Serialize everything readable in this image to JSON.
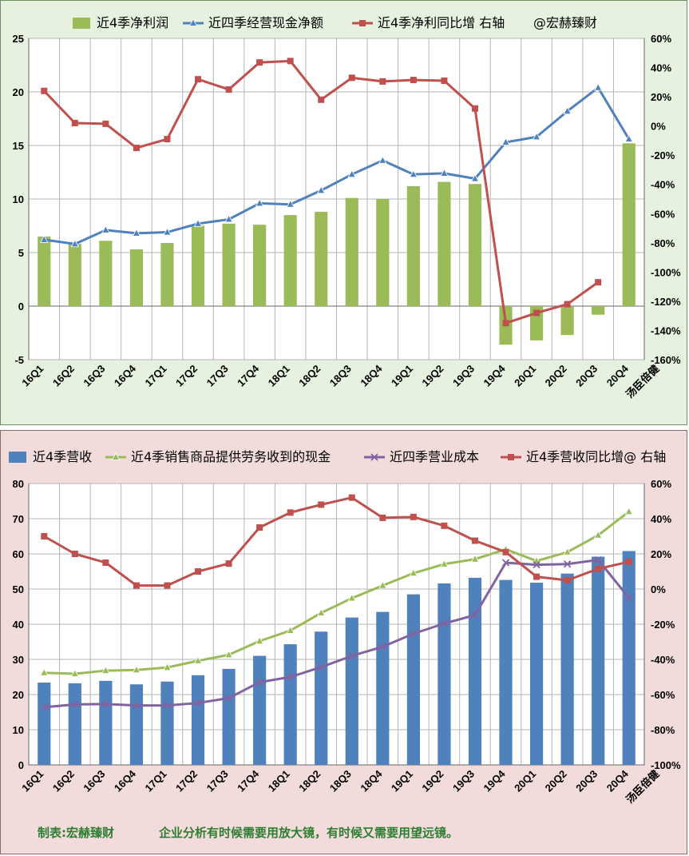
{
  "chart_data": [
    {
      "type": "bar",
      "categories": [
        "16Q1",
        "16Q2",
        "16Q3",
        "16Q4",
        "17Q1",
        "17Q2",
        "17Q3",
        "17Q4",
        "18Q1",
        "18Q2",
        "18Q3",
        "18Q4",
        "19Q1",
        "19Q2",
        "19Q3",
        "19Q4",
        "20Q1",
        "20Q2",
        "20Q3",
        "20Q4"
      ],
      "watermark": "汤臣倍健",
      "series": [
        {
          "name": "近4季净利润",
          "kind": "bar",
          "axis": "left",
          "color": "#9bbb59",
          "values": [
            6.5,
            5.8,
            6.1,
            5.3,
            5.9,
            7.5,
            7.7,
            7.6,
            8.5,
            8.8,
            10.1,
            10.0,
            11.2,
            11.6,
            11.4,
            -3.6,
            -3.2,
            -2.7,
            -0.8,
            15.2
          ]
        },
        {
          "name": "近四季经营现金净额",
          "kind": "line",
          "marker": "triangle",
          "axis": "left",
          "color": "#4f81bd",
          "values": [
            6.2,
            5.8,
            7.1,
            6.8,
            6.9,
            7.7,
            8.1,
            9.6,
            9.5,
            10.8,
            12.3,
            13.6,
            12.3,
            12.4,
            11.9,
            15.3,
            15.8,
            18.2,
            20.4,
            15.6
          ]
        },
        {
          "name": "近4季净利同比增 右轴",
          "kind": "line",
          "marker": "square",
          "axis": "right",
          "color": "#c0504d",
          "values": [
            24,
            2,
            1.5,
            -15,
            -9,
            32,
            25,
            43.5,
            44.5,
            18,
            33,
            30.5,
            31.5,
            31,
            12,
            -135,
            -128,
            -122,
            -107,
            null
          ]
        }
      ],
      "legend_suffix": "@宏赫臻财",
      "ylim": [
        -5,
        25
      ],
      "yticks": [
        "-5",
        "0",
        "5",
        "10",
        "15",
        "20",
        "25"
      ],
      "y2lim": [
        -160,
        60
      ],
      "y2ticks": [
        "-160%",
        "-140%",
        "-120%",
        "-100%",
        "-80%",
        "-60%",
        "-40%",
        "-20%",
        "0%",
        "20%",
        "40%",
        "60%"
      ],
      "grid": true,
      "legend_position": "top"
    },
    {
      "type": "bar",
      "categories": [
        "16Q1",
        "16Q2",
        "16Q3",
        "16Q4",
        "17Q1",
        "17Q2",
        "17Q3",
        "17Q4",
        "18Q1",
        "18Q2",
        "18Q3",
        "18Q4",
        "19Q1",
        "19Q2",
        "19Q3",
        "19Q4",
        "20Q1",
        "20Q2",
        "20Q3",
        "20Q4"
      ],
      "watermark": "汤臣倍健",
      "series": [
        {
          "name": "近4季营收",
          "kind": "bar",
          "axis": "left",
          "color": "#4f81bd",
          "values": [
            23.4,
            23.2,
            23.9,
            22.9,
            23.7,
            25.5,
            27.3,
            31.0,
            34.3,
            37.9,
            41.9,
            43.5,
            48.5,
            51.6,
            53.2,
            52.6,
            51.8,
            54.4,
            59.2,
            60.8
          ]
        },
        {
          "name": "近4季销售商品提供劳务收到的现金",
          "kind": "line",
          "marker": "triangle",
          "axis": "left",
          "color": "#9bbb59",
          "values": [
            26.2,
            25.9,
            26.8,
            27.0,
            27.7,
            29.6,
            31.3,
            35.2,
            38.2,
            43.2,
            47.4,
            51.0,
            54.5,
            57.1,
            58.5,
            61.3,
            58.0,
            60.5,
            65.3,
            72.0
          ]
        },
        {
          "name": "近四季营业成本",
          "kind": "line",
          "marker": "x",
          "axis": "left",
          "color": "#8064a2",
          "values": [
            16.4,
            17.2,
            17.3,
            16.9,
            16.9,
            17.6,
            19.0,
            23.5,
            25.0,
            27.8,
            31.0,
            33.6,
            37.3,
            40.2,
            42.6,
            57.5,
            56.9,
            57.1,
            58.3,
            47.5
          ]
        },
        {
          "name": "近4季营收同比增@ 右轴",
          "kind": "line",
          "marker": "square",
          "axis": "right",
          "color": "#c0504d",
          "values": [
            30,
            20,
            15,
            2,
            2,
            10,
            14.5,
            35,
            43.5,
            48,
            52,
            40.5,
            41,
            36,
            27.5,
            21,
            7,
            5,
            11.5,
            15.5
          ]
        }
      ],
      "ylim": [
        0,
        80
      ],
      "yticks": [
        "0",
        "10",
        "20",
        "30",
        "40",
        "50",
        "60",
        "70",
        "80"
      ],
      "y2lim": [
        -100,
        60
      ],
      "y2ticks": [
        "-100%",
        "-80%",
        "-60%",
        "-40%",
        "-20%",
        "0%",
        "20%",
        "40%",
        "60%"
      ],
      "grid": true,
      "legend_position": "top"
    }
  ],
  "footer": {
    "maker": "制表:宏赫臻财",
    "slogan": "企业分析有时候需要用放大镜，有时候又需要用望远镜。"
  }
}
